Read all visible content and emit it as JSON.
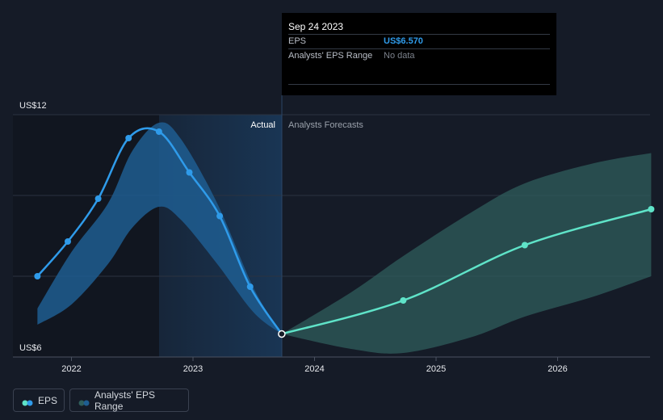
{
  "tooltip": {
    "date": "Sep 24 2023",
    "eps_label": "EPS",
    "eps_value": "US$6.570",
    "range_label": "Analysts' EPS Range",
    "range_value": "No data"
  },
  "labels": {
    "actual": "Actual",
    "forecast": "Analysts Forecasts"
  },
  "legend": {
    "eps": "EPS",
    "range": "Analysts' EPS Range"
  },
  "colors": {
    "actual_line": "#2f9bea",
    "forecast_line": "#5fe3c8",
    "actual_band": "#1e5d91",
    "forecast_band": "#2f5e5c",
    "background": "#151b27"
  },
  "chart_data": {
    "type": "line",
    "x_ticks": [
      "2022",
      "2023",
      "2024",
      "2025",
      "2026"
    ],
    "y_ticks": [
      {
        "value": 12,
        "label": "US$12"
      },
      {
        "value": 6,
        "label": "US$6"
      }
    ],
    "ylim": [
      6,
      12
    ],
    "series": [
      {
        "name": "EPS",
        "kind": "actual",
        "x": [
          2021.72,
          2021.97,
          2022.22,
          2022.47,
          2022.72,
          2022.97,
          2023.22,
          2023.47,
          2023.73
        ],
        "y": [
          8.0,
          8.86,
          9.92,
          11.42,
          11.58,
          10.57,
          9.49,
          7.74,
          6.57
        ]
      },
      {
        "name": "EPS",
        "kind": "forecast",
        "x": [
          2023.73,
          2024.73,
          2025.73,
          2026.77
        ],
        "y": [
          6.57,
          7.4,
          8.77,
          9.66
        ]
      }
    ],
    "bands": [
      {
        "name": "Analysts' EPS Range",
        "kind": "actual",
        "x": [
          2021.72,
          2022.0,
          2022.3,
          2022.5,
          2022.72,
          2022.9,
          2023.2,
          2023.5,
          2023.73
        ],
        "low": [
          6.8,
          7.3,
          8.3,
          9.2,
          9.72,
          9.4,
          8.3,
          7.1,
          6.57
        ],
        "high": [
          7.2,
          8.6,
          9.8,
          11.1,
          11.8,
          11.4,
          9.8,
          7.7,
          6.57
        ]
      },
      {
        "name": "Analysts' EPS Range",
        "kind": "forecast",
        "x": [
          2023.73,
          2024.3,
          2024.73,
          2025.3,
          2025.73,
          2026.3,
          2026.77
        ],
        "low": [
          6.57,
          6.2,
          6.1,
          6.5,
          7.0,
          7.5,
          8.0
        ],
        "high": [
          6.57,
          7.6,
          8.5,
          9.6,
          10.3,
          10.8,
          11.05
        ]
      }
    ],
    "grid": true,
    "legend_position": "bottom-left"
  }
}
